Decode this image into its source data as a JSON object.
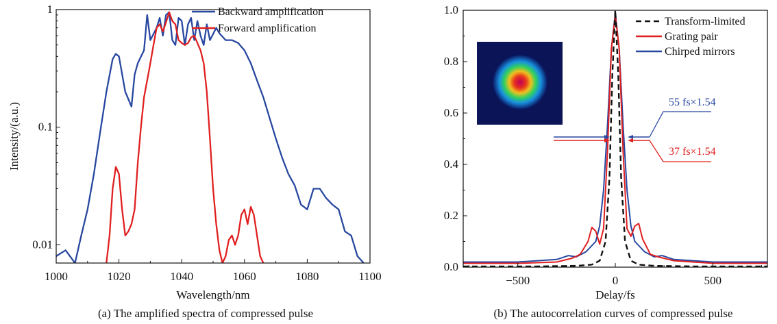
{
  "chart_data": [
    {
      "type": "line",
      "caption": "(a) The amplified spectra of compressed pulse",
      "xlabel": "Wavelength/nm",
      "ylabel": "Intensity/(a.u.)",
      "xlim": [
        1000,
        1100
      ],
      "ylim": [
        0.007,
        1.0
      ],
      "yscale": "log",
      "xticks": [
        1000,
        1020,
        1040,
        1060,
        1080,
        1100
      ],
      "yticks": [
        {
          "value": 1,
          "label": "1"
        },
        {
          "value": 0.1,
          "label": "0.1"
        },
        {
          "value": 0.01,
          "label": "0.01"
        }
      ],
      "legend_position": "top-right",
      "series": [
        {
          "name": "Backward amplification",
          "color": "#2747a0",
          "x": [
            1000,
            1003,
            1006,
            1008,
            1010,
            1012,
            1014,
            1016,
            1018,
            1019,
            1020,
            1022,
            1024,
            1025,
            1026,
            1028,
            1029,
            1030,
            1032,
            1033,
            1034,
            1035,
            1036,
            1037,
            1038,
            1039,
            1040,
            1041,
            1042,
            1043,
            1044,
            1045,
            1046,
            1047,
            1048,
            1049,
            1050,
            1051,
            1052,
            1054,
            1056,
            1058,
            1060,
            1062,
            1064,
            1066,
            1068,
            1070,
            1072,
            1074,
            1076,
            1078,
            1080,
            1082,
            1084,
            1086,
            1088,
            1090,
            1092,
            1094,
            1096,
            1098
          ],
          "values": [
            0.008,
            0.009,
            0.007,
            0.012,
            0.02,
            0.04,
            0.09,
            0.2,
            0.38,
            0.42,
            0.4,
            0.2,
            0.15,
            0.28,
            0.35,
            0.45,
            0.9,
            0.55,
            0.7,
            0.85,
            0.6,
            0.9,
            0.95,
            0.55,
            0.5,
            0.85,
            0.8,
            0.5,
            0.75,
            0.85,
            0.55,
            0.8,
            0.6,
            0.5,
            0.75,
            0.55,
            0.62,
            0.7,
            0.63,
            0.55,
            0.55,
            0.52,
            0.45,
            0.35,
            0.25,
            0.18,
            0.12,
            0.08,
            0.055,
            0.04,
            0.032,
            0.022,
            0.02,
            0.03,
            0.03,
            0.025,
            0.022,
            0.02,
            0.013,
            0.012,
            0.008,
            0.007
          ]
        },
        {
          "name": "Forward amplification",
          "color": "#e02020",
          "x": [
            1016,
            1017,
            1018,
            1019,
            1020,
            1021,
            1022,
            1023,
            1024,
            1025,
            1026,
            1027,
            1028,
            1029,
            1030,
            1031,
            1032,
            1033,
            1034,
            1035,
            1036,
            1037,
            1038,
            1039,
            1040,
            1041,
            1042,
            1043,
            1044,
            1045,
            1046,
            1047,
            1048,
            1049,
            1050,
            1051,
            1052,
            1053,
            1054,
            1055,
            1056,
            1057,
            1058,
            1059,
            1060,
            1061,
            1062,
            1063,
            1064,
            1065,
            1066
          ],
          "values": [
            0.007,
            0.012,
            0.03,
            0.046,
            0.04,
            0.02,
            0.012,
            0.013,
            0.015,
            0.02,
            0.05,
            0.1,
            0.18,
            0.25,
            0.35,
            0.5,
            0.7,
            0.75,
            0.65,
            0.78,
            0.95,
            0.8,
            0.75,
            0.55,
            0.52,
            0.5,
            0.52,
            0.58,
            0.6,
            0.52,
            0.45,
            0.35,
            0.2,
            0.08,
            0.03,
            0.015,
            0.009,
            0.007,
            0.008,
            0.011,
            0.012,
            0.01,
            0.012,
            0.018,
            0.02,
            0.015,
            0.021,
            0.018,
            0.012,
            0.008,
            0.007
          ]
        }
      ]
    },
    {
      "type": "line",
      "caption": "(b) The autocorrelation curves of compressed pulse",
      "xlabel": "Delay/fs",
      "ylabel": "",
      "xlim": [
        -780,
        780
      ],
      "ylim": [
        0,
        1.0
      ],
      "xticks": [
        -500,
        0,
        500
      ],
      "yticks": [
        0,
        0.2,
        0.4,
        0.6,
        0.8,
        1.0
      ],
      "legend_position": "top-right",
      "inset": "beam profile image",
      "annotations": [
        {
          "text": "55 fs×1.54",
          "color": "#2747a0"
        },
        {
          "text": "37 fs×1.54",
          "color": "#e02020"
        }
      ],
      "series": [
        {
          "name": "Transform-limited",
          "color": "#111111",
          "style": "dashed",
          "x": [
            -780,
            -400,
            -200,
            -120,
            -80,
            -50,
            -30,
            -15,
            0,
            15,
            30,
            50,
            80,
            120,
            200,
            400,
            780
          ],
          "values": [
            0.003,
            0.003,
            0.005,
            0.01,
            0.025,
            0.1,
            0.35,
            0.75,
            1.0,
            0.75,
            0.35,
            0.1,
            0.025,
            0.01,
            0.005,
            0.003,
            0.003
          ]
        },
        {
          "name": "Grating pair",
          "color": "#e02020",
          "x": [
            -780,
            -500,
            -300,
            -220,
            -180,
            -140,
            -120,
            -100,
            -80,
            -60,
            -40,
            -20,
            0,
            20,
            40,
            60,
            80,
            100,
            120,
            140,
            180,
            220,
            300,
            500,
            780
          ],
          "values": [
            0.015,
            0.015,
            0.02,
            0.035,
            0.05,
            0.1,
            0.155,
            0.14,
            0.09,
            0.15,
            0.45,
            0.85,
            0.98,
            0.85,
            0.45,
            0.15,
            0.12,
            0.16,
            0.17,
            0.11,
            0.05,
            0.04,
            0.025,
            0.015,
            0.015
          ]
        },
        {
          "name": "Chirped mirrors",
          "color": "#2747a0",
          "x": [
            -780,
            -500,
            -300,
            -240,
            -200,
            -150,
            -100,
            -80,
            -60,
            -40,
            -20,
            0,
            20,
            40,
            60,
            80,
            100,
            150,
            200,
            240,
            300,
            500,
            780
          ],
          "values": [
            0.02,
            0.02,
            0.03,
            0.045,
            0.04,
            0.06,
            0.1,
            0.16,
            0.3,
            0.55,
            0.85,
            0.99,
            0.85,
            0.55,
            0.3,
            0.16,
            0.1,
            0.06,
            0.04,
            0.045,
            0.03,
            0.02,
            0.02
          ]
        }
      ]
    }
  ]
}
